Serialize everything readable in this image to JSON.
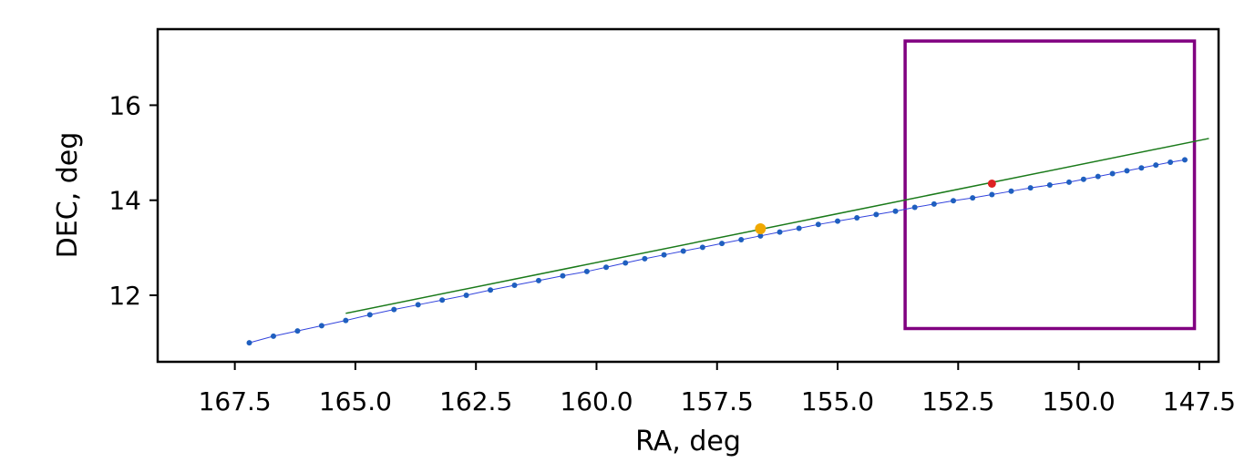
{
  "chart_data": {
    "type": "scatter",
    "title": "",
    "xlabel": "RA, deg",
    "ylabel": "DEC, deg",
    "xlim": [
      169.1,
      147.1
    ],
    "ylim": [
      10.6,
      17.6
    ],
    "x_inverted": true,
    "xticks": [
      167.5,
      165.0,
      162.5,
      160.0,
      157.5,
      155.0,
      152.5,
      150.0,
      147.5
    ],
    "xtick_labels": [
      "167.5",
      "165.0",
      "162.5",
      "160.0",
      "157.5",
      "155.0",
      "152.5",
      "150.0",
      "147.5"
    ],
    "yticks": [
      12,
      14,
      16
    ],
    "ytick_labels": [
      "12",
      "14",
      "16"
    ],
    "grid": false,
    "legend": "none",
    "colors": {
      "track_line": "#3344dd",
      "track_points": "#1f5fbf",
      "fit_line": "#1a7a1a",
      "center_point": "#f0a800",
      "marker": "#dd2222",
      "box": "#800080"
    },
    "series": [
      {
        "kind": "track",
        "points": [
          [
            167.2,
            11.0
          ],
          [
            166.7,
            11.14
          ],
          [
            166.2,
            11.25
          ],
          [
            165.7,
            11.36
          ],
          [
            165.2,
            11.47
          ],
          [
            164.7,
            11.59
          ],
          [
            164.2,
            11.7
          ],
          [
            163.7,
            11.8
          ],
          [
            163.2,
            11.9
          ],
          [
            162.7,
            12.0
          ],
          [
            162.2,
            12.11
          ],
          [
            161.7,
            12.21
          ],
          [
            161.2,
            12.31
          ],
          [
            160.7,
            12.41
          ],
          [
            160.2,
            12.5
          ],
          [
            159.8,
            12.59
          ],
          [
            159.4,
            12.68
          ],
          [
            159.0,
            12.77
          ],
          [
            158.6,
            12.85
          ],
          [
            158.2,
            12.93
          ],
          [
            157.8,
            13.01
          ],
          [
            157.4,
            13.09
          ],
          [
            157.0,
            13.17
          ],
          [
            156.6,
            13.25
          ],
          [
            156.2,
            13.33
          ],
          [
            155.8,
            13.41
          ],
          [
            155.4,
            13.49
          ],
          [
            155.0,
            13.56
          ],
          [
            154.6,
            13.63
          ],
          [
            154.2,
            13.7
          ],
          [
            153.8,
            13.77
          ],
          [
            153.4,
            13.85
          ],
          [
            153.0,
            13.92
          ],
          [
            152.6,
            13.99
          ],
          [
            152.2,
            14.05
          ],
          [
            151.8,
            14.12
          ],
          [
            151.4,
            14.19
          ],
          [
            151.0,
            14.26
          ],
          [
            150.6,
            14.32
          ],
          [
            150.2,
            14.38
          ],
          [
            149.9,
            14.44
          ],
          [
            149.6,
            14.5
          ],
          [
            149.3,
            14.56
          ],
          [
            149.0,
            14.62
          ],
          [
            148.7,
            14.68
          ],
          [
            148.4,
            14.74
          ],
          [
            148.1,
            14.8
          ],
          [
            147.8,
            14.85
          ]
        ]
      },
      {
        "kind": "fit_line",
        "points": [
          [
            165.2,
            11.62
          ],
          [
            147.3,
            15.3
          ]
        ]
      },
      {
        "kind": "center",
        "points": [
          [
            156.6,
            13.4
          ]
        ]
      },
      {
        "kind": "marker",
        "points": [
          [
            151.8,
            14.35
          ]
        ]
      }
    ],
    "box": {
      "x0": 153.6,
      "x1": 147.6,
      "y0": 11.3,
      "y1": 17.35
    }
  }
}
